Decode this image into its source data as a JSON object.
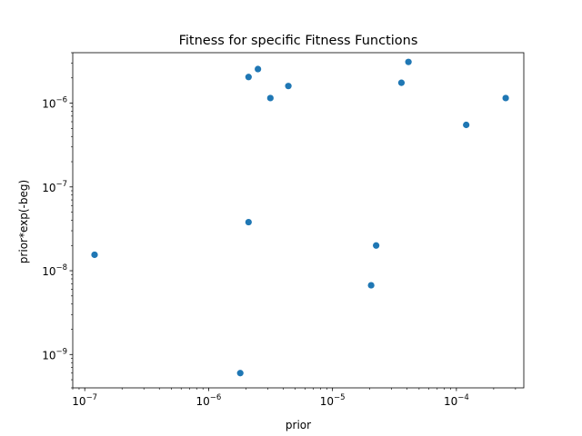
{
  "chart_data": {
    "type": "scatter",
    "title": "Fitness for specific Fitness Functions",
    "xlabel": "prior",
    "ylabel": "prior*exp(-beg)",
    "xscale": "log",
    "yscale": "log",
    "xlim": [
      8e-08,
      0.00035
    ],
    "ylim": [
      4e-10,
      4e-06
    ],
    "grid": false,
    "marker_color": "#1f77b4",
    "x_ticks": [
      {
        "base": "10",
        "exp": "−7",
        "value": 1e-07
      },
      {
        "base": "10",
        "exp": "−6",
        "value": 1e-06
      },
      {
        "base": "10",
        "exp": "−5",
        "value": 1e-05
      },
      {
        "base": "10",
        "exp": "−4",
        "value": 0.0001
      }
    ],
    "y_ticks": [
      {
        "base": "10",
        "exp": "−9",
        "value": 1e-09
      },
      {
        "base": "10",
        "exp": "−8",
        "value": 1e-08
      },
      {
        "base": "10",
        "exp": "−7",
        "value": 1e-07
      },
      {
        "base": "10",
        "exp": "−6",
        "value": 1e-06
      }
    ],
    "points": [
      {
        "x": 1.2e-07,
        "y": 1.55e-08
      },
      {
        "x": 1.8e-06,
        "y": 6e-10
      },
      {
        "x": 2.1e-06,
        "y": 3.8e-08
      },
      {
        "x": 2.1e-06,
        "y": 2.05e-06
      },
      {
        "x": 2.5e-06,
        "y": 2.55e-06
      },
      {
        "x": 3.15e-06,
        "y": 1.15e-06
      },
      {
        "x": 4.4e-06,
        "y": 1.6e-06
      },
      {
        "x": 2.05e-05,
        "y": 6.7e-09
      },
      {
        "x": 2.25e-05,
        "y": 2e-08
      },
      {
        "x": 3.6e-05,
        "y": 1.75e-06
      },
      {
        "x": 4.1e-05,
        "y": 3.1e-06
      },
      {
        "x": 0.00012,
        "y": 5.5e-07
      },
      {
        "x": 0.00025,
        "y": 1.15e-06
      }
    ]
  }
}
